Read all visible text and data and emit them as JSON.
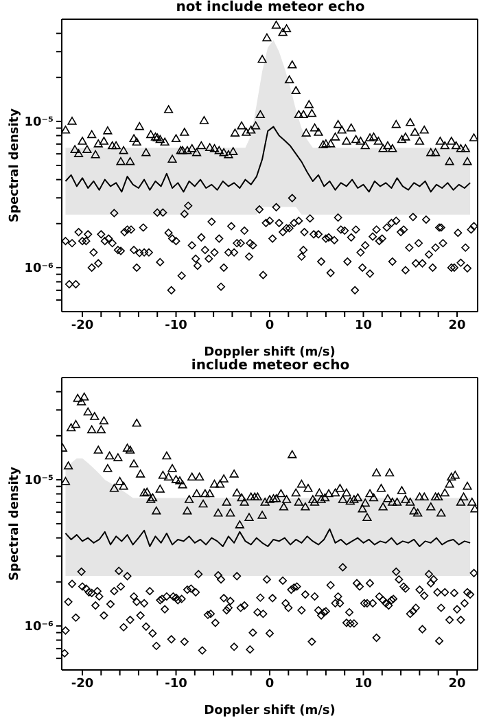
{
  "chart_data": [
    {
      "type": "scatter",
      "title": "not include meteor echo",
      "xlabel": "Doppler shift (m/s)",
      "ylabel": "Spectral density",
      "log": "y",
      "xlim": [
        -22.2,
        22.2
      ],
      "ylim": [
        5e-07,
        5e-05
      ],
      "xticks": [
        -20,
        {
          "value": -18,
          "label": null
        },
        {
          "value": -16,
          "label": null
        },
        {
          "value": -14,
          "label": null
        },
        {
          "value": -12,
          "label": null
        },
        -10,
        {
          "value": -8,
          "label": null
        },
        {
          "value": -6,
          "label": null
        },
        {
          "value": -4,
          "label": null
        },
        {
          "value": -2,
          "label": null
        },
        0,
        {
          "value": 2,
          "label": null
        },
        {
          "value": 4,
          "label": null
        },
        {
          "value": 6,
          "label": null
        },
        {
          "value": 8,
          "label": null
        },
        10,
        {
          "value": 12,
          "label": null
        },
        {
          "value": 14,
          "label": null
        },
        {
          "value": 16,
          "label": null
        },
        {
          "value": 18,
          "label": null
        },
        20
      ],
      "yticks": [
        {
          "value": 6e-07,
          "label": null
        },
        {
          "value": 7e-07,
          "label": null
        },
        {
          "value": 8e-07,
          "label": null
        },
        {
          "value": 9e-07,
          "label": null
        },
        {
          "value": 1e-06,
          "label": "10⁻⁶"
        },
        {
          "value": 2e-06,
          "label": null
        },
        {
          "value": 3e-06,
          "label": null
        },
        {
          "value": 4e-06,
          "label": null
        },
        {
          "value": 5e-06,
          "label": null
        },
        {
          "value": 6e-06,
          "label": null
        },
        {
          "value": 7e-06,
          "label": null
        },
        {
          "value": 8e-06,
          "label": null
        },
        {
          "value": 9e-06,
          "label": null
        },
        {
          "value": 1e-05,
          "label": "10⁻⁵"
        },
        {
          "value": 2e-05,
          "label": null
        },
        {
          "value": 3e-05,
          "label": null
        },
        {
          "value": 4e-05,
          "label": null
        }
      ],
      "series": [
        {
          "type": "line",
          "color": "#000000",
          "line_style": "solid",
          "marker": "none",
          "x": [
            -21.8,
            -21.2,
            -20.6,
            -20.0,
            -19.4,
            -18.8,
            -18.2,
            -17.6,
            -17.0,
            -16.4,
            -15.8,
            -15.2,
            -14.6,
            -14.0,
            -13.4,
            -12.8,
            -12.2,
            -11.6,
            -11.0,
            -10.4,
            -9.8,
            -9.2,
            -8.6,
            -8.0,
            -7.4,
            -6.8,
            -6.2,
            -5.6,
            -5.0,
            -4.4,
            -3.8,
            -3.2,
            -2.6,
            -2.0,
            -1.4,
            -0.8,
            -0.2,
            0.4,
            1.0,
            1.6,
            2.2,
            2.8,
            3.4,
            4.0,
            4.6,
            5.2,
            5.8,
            6.4,
            7.0,
            7.6,
            8.2,
            8.8,
            9.4,
            10.0,
            10.6,
            11.2,
            11.8,
            12.4,
            13.0,
            13.6,
            14.2,
            14.8,
            15.4,
            16.0,
            16.6,
            17.2,
            17.8,
            18.4,
            19.0,
            19.6,
            20.2,
            20.8,
            21.4
          ],
          "values": [
            3.9e-06,
            4.3e-06,
            3.6e-06,
            4.1e-06,
            3.5e-06,
            3.9e-06,
            3.4e-06,
            4e-06,
            3.6e-06,
            3.8e-06,
            3.3e-06,
            4.2e-06,
            3.7e-06,
            3.5e-06,
            4e-06,
            3.4e-06,
            3.9e-06,
            3.6e-06,
            4.4e-06,
            3.5e-06,
            3.8e-06,
            3.3e-06,
            3.9e-06,
            3.6e-06,
            4e-06,
            3.5e-06,
            3.7e-06,
            3.4e-06,
            3.9e-06,
            3.6e-06,
            3.8e-06,
            3.5e-06,
            4e-06,
            3.7e-06,
            4.2e-06,
            5.5e-06,
            8.6e-06,
            9.2e-06,
            8e-06,
            7.4e-06,
            6.8e-06,
            6e-06,
            5.3e-06,
            4.5e-06,
            3.9e-06,
            4.3e-06,
            3.6e-06,
            3.9e-06,
            3.4e-06,
            3.8e-06,
            3.6e-06,
            4e-06,
            3.5e-06,
            3.7e-06,
            3.3e-06,
            3.9e-06,
            3.6e-06,
            3.8e-06,
            3.5e-06,
            4.1e-06,
            3.6e-06,
            3.4e-06,
            3.8e-06,
            3.6e-06,
            3.9e-06,
            3.3e-06,
            3.7e-06,
            3.5e-06,
            3.8e-06,
            3.4e-06,
            3.7e-06,
            3.5e-06,
            3.8e-06
          ],
          "lower": [
            2.3e-06,
            2.3e-06,
            2.3e-06,
            2.3e-06,
            2.3e-06,
            2.3e-06,
            2.3e-06,
            2.3e-06,
            2.3e-06,
            2.3e-06,
            2.3e-06,
            2.3e-06,
            2.3e-06,
            2.3e-06,
            2.3e-06,
            2.3e-06,
            2.3e-06,
            2.3e-06,
            2.3e-06,
            2.3e-06,
            2.3e-06,
            2.3e-06,
            2.3e-06,
            2.3e-06,
            2.3e-06,
            2.3e-06,
            2.3e-06,
            2.3e-06,
            2.3e-06,
            2.3e-06,
            2.3e-06,
            2.3e-06,
            2.3e-06,
            2.3e-06,
            2.3e-06,
            2.6e-06,
            2.6e-06,
            2.6e-06,
            2.6e-06,
            2.6e-06,
            2.6e-06,
            2.6e-06,
            2.3e-06,
            2.3e-06,
            2.3e-06,
            2.3e-06,
            2.3e-06,
            2.3e-06,
            2.3e-06,
            2.3e-06,
            2.3e-06,
            2.3e-06,
            2.3e-06,
            2.3e-06,
            2.3e-06,
            2.3e-06,
            2.3e-06,
            2.3e-06,
            2.3e-06,
            2.3e-06,
            2.3e-06,
            2.3e-06,
            2.3e-06,
            2.3e-06,
            2.3e-06,
            2.3e-06,
            2.3e-06,
            2.3e-06,
            2.3e-06,
            2.3e-06,
            2.3e-06,
            2.3e-06,
            2.3e-06
          ],
          "upper": [
            6.6e-06,
            6.6e-06,
            6.6e-06,
            6.6e-06,
            6.6e-06,
            6.6e-06,
            6.6e-06,
            6.6e-06,
            6.6e-06,
            6.6e-06,
            6.6e-06,
            6.6e-06,
            6.6e-06,
            6.6e-06,
            6.6e-06,
            6.6e-06,
            6.6e-06,
            6.6e-06,
            6.6e-06,
            6.6e-06,
            6.6e-06,
            6.6e-06,
            6.6e-06,
            6.6e-06,
            6.6e-06,
            6.6e-06,
            6.6e-06,
            6.6e-06,
            6.6e-06,
            6.6e-06,
            6.6e-06,
            6.6e-06,
            6.6e-06,
            8e-06,
            1.3e-05,
            2.2e-05,
            3.2e-05,
            3.6e-05,
            3e-05,
            2.3e-05,
            1.7e-05,
            1.2e-05,
            9e-06,
            7.5e-06,
            6.6e-06,
            6.6e-06,
            6.6e-06,
            6.6e-06,
            6.6e-06,
            6.6e-06,
            6.6e-06,
            6.6e-06,
            6.6e-06,
            6.6e-06,
            6.6e-06,
            6.6e-06,
            6.6e-06,
            6.6e-06,
            6.6e-06,
            6.6e-06,
            6.6e-06,
            6.6e-06,
            6.6e-06,
            6.6e-06,
            6.6e-06,
            6.6e-06,
            6.6e-06,
            6.6e-06,
            6.6e-06,
            6.6e-06,
            6.6e-06,
            6.6e-06,
            6.6e-06
          ]
        },
        {
          "type": "scatter",
          "color": "#000000",
          "marker": "triangle",
          "x": [
            -21.8,
            -21.1,
            -20.8,
            -20.4,
            -20.0,
            -19.5,
            -19.0,
            -18.6,
            -18.3,
            -17.7,
            -17.3,
            -16.8,
            -16.4,
            -15.9,
            -15.6,
            -14.9,
            -14.5,
            -14.2,
            -13.9,
            -13.2,
            -12.7,
            -12.2,
            -12.0,
            -11.7,
            -11.2,
            -10.8,
            -10.4,
            -10.0,
            -9.5,
            -9.3,
            -9.1,
            -8.8,
            -8.3,
            -7.8,
            -7.3,
            -7.0,
            -6.4,
            -5.9,
            -5.4,
            -4.9,
            -4.4,
            -3.9,
            -3.7,
            -3.0,
            -2.5,
            -2.0,
            -1.5,
            -1.0,
            -0.8,
            -0.3,
            0.7,
            1.4,
            1.8,
            2.1,
            2.4,
            2.8,
            3.1,
            3.6,
            3.9,
            4.2,
            4.5,
            4.8,
            5.2,
            5.7,
            6.0,
            6.5,
            7.0,
            7.3,
            7.7,
            8.2,
            8.7,
            9.2,
            9.7,
            10.2,
            10.7,
            11.1,
            11.6,
            12.1,
            12.6,
            13.1,
            13.5,
            14.1,
            14.5,
            15.0,
            15.5,
            16.0,
            16.5,
            17.2,
            17.7,
            18.2,
            18.7,
            19.2,
            19.4,
            19.9,
            20.4,
            20.9,
            21.1,
            21.8
          ],
          "values": [
            8.7e-06,
            1e-05,
            6.4e-06,
            6e-06,
            7.3e-06,
            6.4e-06,
            8.1e-06,
            5.9e-06,
            7e-06,
            7.3e-06,
            8.6e-06,
            6.8e-06,
            6.8e-06,
            5.3e-06,
            6.3e-06,
            5.3e-06,
            7.6e-06,
            7.2e-06,
            9.2e-06,
            6.1e-06,
            8.1e-06,
            7.8e-06,
            7.7e-06,
            7.5e-06,
            7.2e-06,
            1.2e-05,
            5.5e-06,
            7.6e-06,
            6.3e-06,
            6.3e-06,
            8.4e-06,
            6.3e-06,
            6.5e-06,
            6.1e-06,
            6.8e-06,
            1.01e-05,
            6.6e-06,
            6.5e-06,
            6.3e-06,
            6.1e-06,
            5.9e-06,
            6.2e-06,
            8.3e-06,
            9.3e-06,
            8.4e-06,
            8.7e-06,
            9.3e-06,
            1.11e-05,
            2.65e-05,
            3.72e-05,
            4.54e-05,
            4.05e-05,
            4.29e-05,
            1.92e-05,
            2.43e-05,
            1.62e-05,
            1.11e-05,
            1.11e-05,
            8.3e-06,
            1.3e-05,
            1.13e-05,
            9e-06,
            8.4e-06,
            6.9e-06,
            7e-06,
            7e-06,
            7.8e-06,
            9.5e-06,
            8.7e-06,
            7.3e-06,
            9e-06,
            7.5e-06,
            7.3e-06,
            6.8e-06,
            7.7e-06,
            7.8e-06,
            7.3e-06,
            6.5e-06,
            6.8e-06,
            6.5e-06,
            9.5e-06,
            7.5e-06,
            7.8e-06,
            9.8e-06,
            8.4e-06,
            7.3e-06,
            8.7e-06,
            6.1e-06,
            6.1e-06,
            7.3e-06,
            6.8e-06,
            5.3e-06,
            7.3e-06,
            6.8e-06,
            6.5e-06,
            6.5e-06,
            5.3e-06,
            7.7e-06
          ]
        },
        {
          "type": "scatter",
          "color": "#000000",
          "marker": "diamond",
          "x": [
            -21.8,
            -21.4,
            -21.1,
            -20.7,
            -20.4,
            -20.0,
            -19.6,
            -19.4,
            -19.0,
            -18.8,
            -18.3,
            -18.0,
            -17.6,
            -17.2,
            -16.8,
            -16.6,
            -16.2,
            -15.9,
            -15.5,
            -15.2,
            -14.8,
            -14.5,
            -14.2,
            -13.9,
            -13.5,
            -13.4,
            -12.9,
            -12.0,
            -11.7,
            -11.4,
            -10.8,
            -10.5,
            -10.4,
            -10.0,
            -9.4,
            -9.1,
            -8.7,
            -8.3,
            -7.9,
            -7.7,
            -7.3,
            -6.9,
            -6.5,
            -6.2,
            -5.9,
            -5.4,
            -5.2,
            -4.9,
            -4.4,
            -4.1,
            -3.8,
            -3.5,
            -3.1,
            -2.7,
            -2.2,
            -2.1,
            -1.8,
            -1.1,
            -0.7,
            -0.4,
            0.0,
            0.3,
            0.7,
            1.0,
            1.4,
            1.8,
            2.1,
            2.4,
            2.6,
            3.1,
            3.4,
            3.6,
            3.7,
            4.3,
            4.7,
            5.2,
            5.5,
            6.0,
            6.3,
            6.5,
            6.9,
            7.3,
            7.6,
            8.0,
            8.3,
            8.7,
            9.1,
            9.2,
            9.7,
            9.9,
            10.2,
            10.7,
            11.0,
            11.4,
            11.7,
            12.0,
            12.5,
            13.0,
            13.1,
            13.5,
            14.0,
            14.3,
            14.5,
            14.9,
            15.3,
            15.6,
            15.9,
            16.3,
            16.7,
            17.0,
            17.4,
            17.7,
            18.1,
            18.3,
            18.5,
            19.4,
            19.7,
            20.1,
            20.4,
            20.9,
            21.1,
            21.5,
            21.8
          ],
          "values": [
            1.52e-06,
            7.7e-07,
            1.47e-06,
            7.7e-07,
            1.75e-06,
            1.52e-06,
            1.52e-06,
            1.69e-06,
            1e-06,
            1.27e-06,
            1.07e-06,
            1.69e-06,
            1.52e-06,
            1.58e-06,
            1.47e-06,
            2.36e-06,
            1.32e-06,
            1.3e-06,
            1.75e-06,
            1.82e-06,
            1.82e-06,
            1.32e-06,
            1e-06,
            1.26e-06,
            1.88e-06,
            1.27e-06,
            1.27e-06,
            2.38e-06,
            1.09e-06,
            2.38e-06,
            1.73e-06,
            7e-07,
            1.58e-06,
            1.52e-06,
            8.8e-07,
            2.33e-06,
            2.65e-06,
            1.42e-06,
            1.15e-06,
            1.03e-06,
            1.61e-06,
            1.32e-06,
            1.15e-06,
            2.06e-06,
            1.27e-06,
            1.58e-06,
            7.4e-07,
            1e-06,
            1.27e-06,
            1.92e-06,
            1.27e-06,
            1.47e-06,
            1.47e-06,
            1.79e-06,
            1.19e-06,
            1.47e-06,
            1.42e-06,
            2.5e-06,
            8.9e-07,
            2.02e-06,
            2.09e-06,
            1.58e-06,
            2.59e-06,
            2.02e-06,
            1.75e-06,
            1.86e-06,
            1.86e-06,
            2.99e-06,
            2.02e-06,
            2.09e-06,
            1.19e-06,
            1.32e-06,
            1.75e-06,
            2.17e-06,
            1.69e-06,
            1.69e-06,
            1.1e-06,
            1.58e-06,
            1.61e-06,
            9.2e-07,
            1.54e-06,
            2.2e-06,
            1.82e-06,
            1.79e-06,
            1.1e-06,
            1.61e-06,
            7e-07,
            1.82e-06,
            1.27e-06,
            1e-06,
            1.42e-06,
            9.1e-07,
            1.63e-06,
            1.82e-06,
            1.52e-06,
            1.58e-06,
            1.88e-06,
            2.02e-06,
            1.1e-06,
            2.09e-06,
            1.75e-06,
            1.82e-06,
            9.6e-07,
            1.37e-06,
            2.22e-06,
            1.07e-06,
            1.47e-06,
            1.07e-06,
            2.13e-06,
            1.23e-06,
            1e-06,
            1.37e-06,
            1.88e-06,
            1.88e-06,
            1.47e-06,
            1e-06,
            1e-06,
            1.73e-06,
            1.08e-06,
            1.37e-06,
            9.9e-07,
            1.82e-06,
            1.92e-06
          ]
        }
      ]
    },
    {
      "type": "scatter",
      "title": "include meteor echo",
      "xlabel": "Doppler shift (m/s)",
      "ylabel": "Spectral density",
      "log": "y",
      "xlim": [
        -22.2,
        22.2
      ],
      "ylim": [
        5e-07,
        5e-05
      ],
      "xticks": [
        -20,
        {
          "value": -18,
          "label": null
        },
        {
          "value": -16,
          "label": null
        },
        {
          "value": -14,
          "label": null
        },
        {
          "value": -12,
          "label": null
        },
        -10,
        {
          "value": -8,
          "label": null
        },
        {
          "value": -6,
          "label": null
        },
        {
          "value": -4,
          "label": null
        },
        {
          "value": -2,
          "label": null
        },
        0,
        {
          "value": 2,
          "label": null
        },
        {
          "value": 4,
          "label": null
        },
        {
          "value": 6,
          "label": null
        },
        {
          "value": 8,
          "label": null
        },
        10,
        {
          "value": 12,
          "label": null
        },
        {
          "value": 14,
          "label": null
        },
        {
          "value": 16,
          "label": null
        },
        {
          "value": 18,
          "label": null
        },
        20
      ],
      "yticks": [
        {
          "value": 6e-07,
          "label": null
        },
        {
          "value": 7e-07,
          "label": null
        },
        {
          "value": 8e-07,
          "label": null
        },
        {
          "value": 9e-07,
          "label": null
        },
        {
          "value": 1e-06,
          "label": "10⁻⁶"
        },
        {
          "value": 2e-06,
          "label": null
        },
        {
          "value": 3e-06,
          "label": null
        },
        {
          "value": 4e-06,
          "label": null
        },
        {
          "value": 5e-06,
          "label": null
        },
        {
          "value": 6e-06,
          "label": null
        },
        {
          "value": 7e-06,
          "label": null
        },
        {
          "value": 8e-06,
          "label": null
        },
        {
          "value": 9e-06,
          "label": null
        },
        {
          "value": 1e-05,
          "label": "10⁻⁵"
        },
        {
          "value": 2e-05,
          "label": null
        },
        {
          "value": 3e-05,
          "label": null
        },
        {
          "value": 4e-05,
          "label": null
        }
      ],
      "series": [
        {
          "type": "line",
          "color": "#000000",
          "line_style": "solid",
          "marker": "none",
          "x": [
            -21.8,
            -21.2,
            -20.6,
            -20.0,
            -19.4,
            -18.8,
            -18.2,
            -17.6,
            -17.0,
            -16.4,
            -15.8,
            -15.2,
            -14.6,
            -14.0,
            -13.4,
            -12.8,
            -12.2,
            -11.6,
            -11.0,
            -10.4,
            -9.8,
            -9.2,
            -8.6,
            -8.0,
            -7.4,
            -6.8,
            -6.2,
            -5.6,
            -5.0,
            -4.4,
            -3.8,
            -3.2,
            -2.6,
            -2.0,
            -1.4,
            -0.8,
            -0.2,
            0.4,
            1.0,
            1.6,
            2.2,
            2.8,
            3.4,
            4.0,
            4.6,
            5.2,
            5.8,
            6.4,
            7.0,
            7.6,
            8.2,
            8.8,
            9.4,
            10.0,
            10.6,
            11.2,
            11.8,
            12.4,
            13.0,
            13.6,
            14.2,
            14.8,
            15.4,
            16.0,
            16.6,
            17.2,
            17.8,
            18.4,
            19.0,
            19.6,
            20.2,
            20.8,
            21.4
          ],
          "values": [
            4.3e-06,
            3.9e-06,
            4.2e-06,
            3.8e-06,
            4e-06,
            3.7e-06,
            3.9e-06,
            4.4e-06,
            3.6e-06,
            4.1e-06,
            3.8e-06,
            4.2e-06,
            3.6e-06,
            4e-06,
            4.5e-06,
            3.5e-06,
            4.1e-06,
            3.7e-06,
            4.3e-06,
            3.6e-06,
            3.9e-06,
            3.8e-06,
            4.1e-06,
            3.7e-06,
            3.9e-06,
            3.6e-06,
            4e-06,
            3.8e-06,
            3.5e-06,
            4.1e-06,
            3.7e-06,
            4.4e-06,
            3.8e-06,
            3.6e-06,
            4e-06,
            3.7e-06,
            3.5e-06,
            3.9e-06,
            3.8e-06,
            4e-06,
            3.6e-06,
            3.9e-06,
            3.7e-06,
            4.1e-06,
            3.8e-06,
            3.6e-06,
            3.9e-06,
            4.6e-06,
            3.7e-06,
            3.9e-06,
            3.6e-06,
            3.8e-06,
            4e-06,
            3.7e-06,
            3.9e-06,
            3.6e-06,
            3.8e-06,
            3.7e-06,
            4e-06,
            3.6e-06,
            3.8e-06,
            3.7e-06,
            3.9e-06,
            3.5e-06,
            3.8e-06,
            3.7e-06,
            4e-06,
            3.6e-06,
            3.8e-06,
            3.9e-06,
            3.6e-06,
            3.8e-06,
            3.7e-06
          ],
          "lower": [
            2.2e-06,
            2.2e-06,
            2.2e-06,
            2.2e-06,
            2.2e-06,
            2.2e-06,
            2.2e-06,
            2.2e-06,
            2.2e-06,
            2.2e-06,
            2.2e-06,
            2.2e-06,
            2.2e-06,
            2.2e-06,
            2.2e-06,
            2.2e-06,
            2.2e-06,
            2.2e-06,
            2.2e-06,
            2.2e-06,
            2.2e-06,
            2.2e-06,
            2.2e-06,
            2.2e-06,
            2.2e-06,
            2.2e-06,
            2.2e-06,
            2.2e-06,
            2.2e-06,
            2.2e-06,
            2.2e-06,
            2.2e-06,
            2.2e-06,
            2.2e-06,
            2.2e-06,
            2.2e-06,
            2.2e-06,
            2.2e-06,
            2.2e-06,
            2.2e-06,
            2.2e-06,
            2.2e-06,
            2.2e-06,
            2.2e-06,
            2.2e-06,
            2.2e-06,
            2.2e-06,
            2.2e-06,
            2.2e-06,
            2.2e-06,
            2.2e-06,
            2.2e-06,
            2.2e-06,
            2.2e-06,
            2.2e-06,
            2.2e-06,
            2.2e-06,
            2.2e-06,
            2.2e-06,
            2.2e-06,
            2.2e-06,
            2.2e-06,
            2.2e-06,
            2.2e-06,
            2.2e-06,
            2.2e-06,
            2.2e-06,
            2.2e-06,
            2.2e-06,
            2.2e-06,
            2.2e-06,
            2.2e-06,
            2.2e-06
          ],
          "upper": [
            1.2e-05,
            1.3e-05,
            1.4e-05,
            1.4e-05,
            1.3e-05,
            1.2e-05,
            1.1e-05,
            1e-05,
            9.5e-06,
            9e-06,
            8.5e-06,
            8e-06,
            7.5e-06,
            7.5e-06,
            7.5e-06,
            7.5e-06,
            7.5e-06,
            7.5e-06,
            7.5e-06,
            7.5e-06,
            7.5e-06,
            7.5e-06,
            7.5e-06,
            7.5e-06,
            7.5e-06,
            7.5e-06,
            7.5e-06,
            7.5e-06,
            7.5e-06,
            7.5e-06,
            7.5e-06,
            7.5e-06,
            7.5e-06,
            7.5e-06,
            7.5e-06,
            7.5e-06,
            7.5e-06,
            7.5e-06,
            7.5e-06,
            7.5e-06,
            7.5e-06,
            7.5e-06,
            7.5e-06,
            7.5e-06,
            7.5e-06,
            7.5e-06,
            7.5e-06,
            7.5e-06,
            7.5e-06,
            7.5e-06,
            7.5e-06,
            7.5e-06,
            7.5e-06,
            7.5e-06,
            7.5e-06,
            7.5e-06,
            7.5e-06,
            7.5e-06,
            7.5e-06,
            7.5e-06,
            7.5e-06,
            7.5e-06,
            7.5e-06,
            7.5e-06,
            7.5e-06,
            7.5e-06,
            7.5e-06,
            7.5e-06,
            7.5e-06,
            7.5e-06,
            7.5e-06,
            7.5e-06,
            7.5e-06
          ]
        },
        {
          "type": "scatter",
          "color": "#000000",
          "marker": "triangle",
          "x": [
            -22.1,
            -21.8,
            -21.5,
            -21.2,
            -20.7,
            -20.5,
            -20.1,
            -19.8,
            -19.4,
            -19.0,
            -18.7,
            -18.3,
            -18.0,
            -17.7,
            -17.3,
            -17.1,
            -16.6,
            -16.2,
            -16.0,
            -15.6,
            -15.2,
            -14.9,
            -14.5,
            -14.2,
            -13.8,
            -13.4,
            -13.1,
            -12.7,
            -12.5,
            -12.1,
            -11.7,
            -11.4,
            -11.0,
            -10.8,
            -10.4,
            -10.0,
            -9.6,
            -9.3,
            -8.8,
            -8.6,
            -8.3,
            -7.8,
            -7.5,
            -7.1,
            -6.9,
            -6.4,
            -5.9,
            -5.5,
            -5.3,
            -4.9,
            -4.6,
            -4.2,
            -3.8,
            -3.5,
            -3.2,
            -3.0,
            -2.7,
            -2.2,
            -2.0,
            -1.6,
            -1.3,
            -0.8,
            -0.5,
            0.0,
            0.4,
            0.7,
            1.2,
            1.5,
            1.8,
            2.4,
            2.8,
            3.1,
            3.4,
            3.8,
            4.1,
            4.6,
            4.8,
            5.3,
            5.5,
            5.9,
            6.3,
            7.0,
            7.5,
            7.8,
            8.2,
            8.6,
            9.0,
            9.4,
            9.9,
            10.2,
            10.4,
            10.7,
            11.1,
            11.4,
            11.9,
            12.1,
            12.6,
            12.8,
            13.1,
            13.6,
            14.1,
            14.5,
            15.0,
            15.4,
            15.8,
            16.0,
            16.5,
            17.2,
            17.7,
            18.0,
            18.3,
            18.7,
            19.2,
            19.4,
            19.8,
            20.4,
            20.7,
            21.1,
            21.6,
            21.9
          ],
          "values": [
            1.64e-05,
            9.7e-06,
            1.24e-05,
            2.26e-05,
            2.38e-05,
            3.59e-05,
            3.4e-05,
            3.67e-05,
            2.9e-05,
            2.19e-05,
            2.7e-05,
            1.59e-05,
            2.19e-05,
            2.52e-05,
            1.19e-05,
            1.45e-05,
            8.7e-06,
            1.41e-05,
            9.7e-06,
            9e-06,
            1.64e-05,
            1.59e-05,
            1.28e-05,
            2.43e-05,
            1.09e-05,
            8.1e-06,
            8.2e-06,
            7.3e-06,
            7.5e-06,
            6.1e-06,
            8.6e-06,
            1.07e-05,
            1.45e-05,
            1.04e-05,
            1.19e-05,
            1e-05,
            9.8e-06,
            9.2e-06,
            6.1e-06,
            7.3e-06,
            1.04e-05,
            8e-06,
            1.04e-05,
            6.8e-06,
            8e-06,
            8e-06,
            9.3e-06,
            5.9e-06,
            9.3e-06,
            1.01e-05,
            7e-06,
            5.9e-06,
            1.09e-05,
            8.1e-06,
            4.9e-06,
            7.5e-06,
            7e-06,
            5.5e-06,
            7.6e-06,
            7.6e-06,
            7.6e-06,
            5.7e-06,
            7e-06,
            7.3e-06,
            7.4e-06,
            7.4e-06,
            8e-06,
            6.5e-06,
            7.3e-06,
            1.48e-05,
            8.1e-06,
            7e-06,
            9.3e-06,
            6.5e-06,
            8.7e-06,
            7.3e-06,
            7e-06,
            8.1e-06,
            7.3e-06,
            7.5e-06,
            8e-06,
            8.1e-06,
            8.7e-06,
            7.3e-06,
            8.1e-06,
            7.1e-06,
            7.3e-06,
            7.5e-06,
            6.3e-06,
            6.9e-06,
            5.5e-06,
            8e-06,
            7.5e-06,
            1.11e-05,
            8.7e-06,
            6.5e-06,
            7.4e-06,
            1.11e-05,
            7e-06,
            7e-06,
            8.4e-06,
            7.3e-06,
            7e-06,
            6.1e-06,
            5.9e-06,
            7.6e-06,
            7.6e-06,
            6.5e-06,
            7.6e-06,
            7.6e-06,
            5.9e-06,
            8.1e-06,
            9.3e-06,
            1.04e-05,
            1.07e-05,
            7e-06,
            7.6e-06,
            9e-06,
            7e-06,
            6.3e-06
          ]
        },
        {
          "type": "scatter",
          "color": "#000000",
          "marker": "diamond",
          "x": [
            -21.9,
            -21.8,
            -21.5,
            -21.1,
            -20.7,
            -20.1,
            -20.0,
            -19.6,
            -19.3,
            -19.0,
            -18.6,
            -18.4,
            -18.2,
            -17.7,
            -17.0,
            -16.6,
            -16.1,
            -15.9,
            -15.6,
            -15.2,
            -14.9,
            -14.5,
            -14.2,
            -13.8,
            -13.4,
            -13.2,
            -12.8,
            -12.5,
            -12.1,
            -11.7,
            -11.5,
            -11.2,
            -11.0,
            -10.5,
            -10.3,
            -10.0,
            -9.8,
            -9.4,
            -9.1,
            -8.8,
            -8.4,
            -7.9,
            -7.6,
            -7.2,
            -6.6,
            -6.3,
            -5.8,
            -5.5,
            -5.2,
            -4.9,
            -4.6,
            -4.4,
            -4.2,
            -3.8,
            -3.5,
            -3.1,
            -2.7,
            -2.1,
            -1.8,
            -1.3,
            -1.0,
            -0.7,
            -0.3,
            0.0,
            0.3,
            1.4,
            1.7,
            2.0,
            2.3,
            2.6,
            2.9,
            3.4,
            3.8,
            4.5,
            4.8,
            5.2,
            5.5,
            5.8,
            6.0,
            6.5,
            7.0,
            7.3,
            7.5,
            7.8,
            8.2,
            8.5,
            8.6,
            9.0,
            9.3,
            9.6,
            10.1,
            10.4,
            10.7,
            11.0,
            11.4,
            11.7,
            12.1,
            12.4,
            12.7,
            13.0,
            13.2,
            13.5,
            13.8,
            14.3,
            14.5,
            15.0,
            15.3,
            15.6,
            16.0,
            16.3,
            16.5,
            17.0,
            17.2,
            17.5,
            17.9,
            18.1,
            18.3,
            18.7,
            19.2,
            19.7,
            20.0,
            20.4,
            20.8,
            21.1,
            21.4,
            21.8
          ],
          "values": [
            6.5e-07,
            9.3e-07,
            1.46e-06,
            1.94e-06,
            1.14e-06,
            2.35e-06,
            1.86e-06,
            1.8e-06,
            1.7e-06,
            1.68e-06,
            1.38e-06,
            1.73e-06,
            1.59e-06,
            1.18e-06,
            1.41e-06,
            1.73e-06,
            2.38e-06,
            1.86e-06,
            9.8e-07,
            2.19e-06,
            1.1e-06,
            1.59e-06,
            1.46e-06,
            1.18e-06,
            1.43e-06,
            9.9e-07,
            1.73e-06,
            8.9e-07,
            7.3e-07,
            1.5e-06,
            1.53e-06,
            1.3e-06,
            1.59e-06,
            8.1e-07,
            1.59e-06,
            1.56e-06,
            1.5e-06,
            1.53e-06,
            7.8e-07,
            1.77e-06,
            1.8e-06,
            1.7e-06,
            2.26e-06,
            6.8e-07,
            1.19e-06,
            1.21e-06,
            1.05e-06,
            2.22e-06,
            2.08e-06,
            1.55e-06,
            1.28e-06,
            1.33e-06,
            1.48e-06,
            7.2e-07,
            2.19e-06,
            1.33e-06,
            1.38e-06,
            6.9e-07,
            9e-07,
            1.24e-06,
            1.56e-06,
            1.21e-06,
            2.08e-06,
            8.9e-07,
            1.55e-06,
            2.04e-06,
            1.43e-06,
            1.33e-06,
            1.77e-06,
            1.83e-06,
            1.86e-06,
            1.28e-06,
            1.64e-06,
            7.8e-07,
            1.59e-06,
            1.28e-06,
            1.18e-06,
            1.24e-06,
            1.26e-06,
            1.9e-06,
            1.43e-06,
            1.59e-06,
            1.43e-06,
            2.52e-06,
            1.05e-06,
            1.24e-06,
            1.04e-06,
            1.04e-06,
            1.96e-06,
            1.86e-06,
            1.43e-06,
            1.43e-06,
            1.96e-06,
            1.43e-06,
            8.3e-07,
            1.59e-06,
            1.5e-06,
            1.43e-06,
            1.38e-06,
            1.5e-06,
            1.53e-06,
            2.35e-06,
            2.08e-06,
            1.86e-06,
            1.8e-06,
            1.21e-06,
            1.26e-06,
            1.33e-06,
            1.77e-06,
            9.5e-07,
            1.61e-06,
            2.26e-06,
            1.96e-06,
            2.08e-06,
            1.7e-06,
            7.9e-07,
            1.33e-06,
            1.7e-06,
            1.1e-06,
            1.68e-06,
            1.3e-06,
            1.1e-06,
            1.43e-06,
            1.7e-06,
            1.64e-06,
            2.3e-06
          ]
        }
      ]
    }
  ]
}
